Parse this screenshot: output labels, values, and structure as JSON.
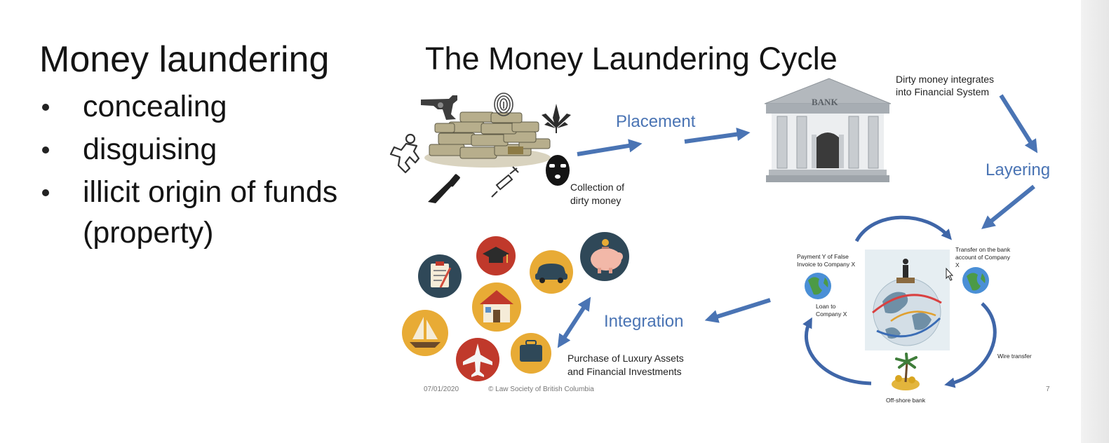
{
  "left_panel": {
    "title": "Money laundering",
    "bullets": [
      "concealing",
      "disguising",
      "illicit origin of funds",
      "(property)"
    ]
  },
  "slide": {
    "title": "The Money Laundering Cycle",
    "stages": {
      "placement": "Placement",
      "layering": "Layering",
      "integration": "Integration"
    },
    "captions": {
      "collection": [
        "Collection of",
        "dirty money"
      ],
      "dirty_money": [
        "Dirty money integrates",
        "into Financial System"
      ],
      "purchase": [
        "Purchase of Luxury Assets",
        "and Financial Investments"
      ],
      "bank_sign": "BANK"
    },
    "layering_cycle": {
      "payment": [
        "Payment Y of False",
        "Invoice to Company X"
      ],
      "transfer": [
        "Transfer on the bank",
        "account of Company",
        "X"
      ],
      "loan": [
        "Loan to",
        "Company X"
      ],
      "wire": "Wire transfer",
      "offshore": "Off-shore bank"
    },
    "footer": {
      "date": "07/01/2020",
      "copyright": "© Law Society of British Columbia",
      "page": "7"
    }
  },
  "colors": {
    "arrow_blue": "#4a74b4",
    "stage_text": "#4a74b4",
    "bank_gray": "#9aa0a6"
  }
}
